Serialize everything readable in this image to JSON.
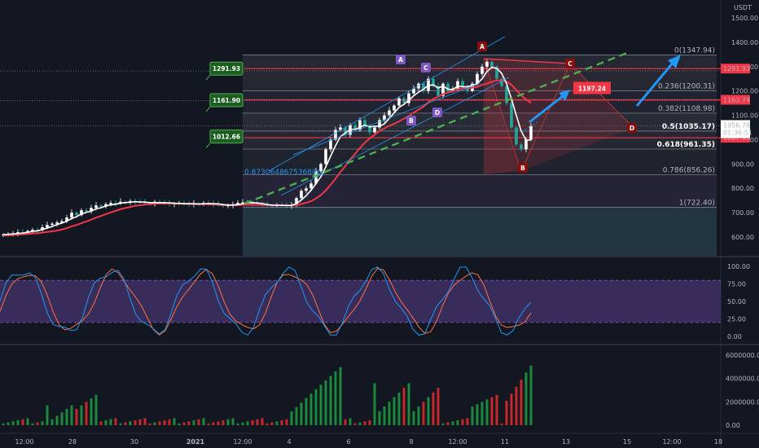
{
  "chart_data": [
    {
      "type": "candlestick",
      "currency": "USDT",
      "y_ticks": [
        "1500.00",
        "1400.00",
        "1300.00",
        "1200.00",
        "1100.00",
        "1000.00",
        "900.00",
        "800.00",
        "700.00",
        "600.00"
      ],
      "x_ticks": [
        "12:00",
        "28",
        "30",
        "2021",
        "12:00",
        "4",
        "6",
        "8",
        "12:00",
        "11",
        "13",
        "15",
        "12:00",
        "18"
      ],
      "ylim": [
        540,
        1540
      ],
      "last_price": "1056.78",
      "countdown": "01:36:51",
      "price_labels": [
        {
          "text": "1291.93",
          "value": 1291.93,
          "color": "#f23645"
        },
        {
          "text": "1163.74",
          "value": 1163.74,
          "color": "#f23645"
        },
        {
          "text": "1007.93",
          "value": 1007.93,
          "color": "#f23645"
        }
      ],
      "fib_levels": [
        {
          "label": "0(1347.94)",
          "value": 1347.94,
          "bold": false
        },
        {
          "label": "0.236(1200.31)",
          "value": 1200.31,
          "bold": false
        },
        {
          "label": "0.382(1108.98)",
          "value": 1108.98,
          "bold": false
        },
        {
          "label": "0.5(1035.17)",
          "value": 1035.17,
          "bold": true
        },
        {
          "label": "0.618(961.35)",
          "value": 961.35,
          "bold": true
        },
        {
          "label": "0.786(856.26)",
          "value": 856.26,
          "bold": false
        },
        {
          "label": "1(722.40)",
          "value": 722.4,
          "bold": false
        }
      ],
      "green_tags": [
        {
          "text": "1291.93",
          "value": 1291.93
        },
        {
          "text": "1161.90",
          "value": 1161.9
        },
        {
          "text": "1012.66",
          "value": 1012.66
        }
      ],
      "target": {
        "text": "1197.24",
        "value": 1197.24
      },
      "wave_labels": [
        {
          "text": "A",
          "color": "#7e57c2"
        },
        {
          "text": "C",
          "color": "#7e57c2"
        },
        {
          "text": "B",
          "color": "#7e57c2"
        },
        {
          "text": "D",
          "color": "#7e57c2"
        },
        {
          "text": "A",
          "color": "#880e0e"
        },
        {
          "text": "B",
          "color": "#880e0e"
        },
        {
          "text": "C",
          "color": "#880e0e"
        },
        {
          "text": "D",
          "color": "#880e0e"
        }
      ],
      "blue_annotation": "0.873064867536806",
      "candles_close": [
        610,
        612,
        615,
        620,
        618,
        625,
        630,
        628,
        640,
        650,
        655,
        660,
        665,
        680,
        700,
        690,
        710,
        705,
        720,
        730,
        725,
        735,
        740,
        738,
        745,
        742,
        748,
        744,
        742,
        740,
        738,
        745,
        742,
        740,
        735,
        738,
        740,
        736,
        734,
        738,
        735,
        740,
        738,
        735,
        732,
        728,
        730,
        735,
        740,
        742,
        745,
        738,
        735,
        732,
        730,
        728,
        732,
        730,
        728,
        730,
        760,
        790,
        800,
        820,
        870,
        900,
        960,
        1000,
        1040,
        1050,
        1020,
        1060,
        1040,
        1080,
        1060,
        1030,
        1050,
        1080,
        1100,
        1120,
        1140,
        1170,
        1150,
        1190,
        1210,
        1230,
        1200,
        1250,
        1220,
        1180,
        1230,
        1200,
        1210,
        1240,
        1220,
        1200,
        1230,
        1270,
        1300,
        1320,
        1300,
        1250,
        1220,
        1150,
        1050,
        980,
        960,
        1000,
        1056
      ]
    },
    {
      "type": "line",
      "name": "stoch",
      "y_ticks": [
        "100.00",
        "75.00",
        "50.00",
        "25.00",
        "0.00"
      ],
      "ylim": [
        0,
        100
      ]
    },
    {
      "type": "bar",
      "name": "volume",
      "y_ticks": [
        "6000000.00",
        "4000000.00",
        "2000000.00",
        "0.00"
      ],
      "ylim": [
        0,
        6800000
      ]
    }
  ]
}
